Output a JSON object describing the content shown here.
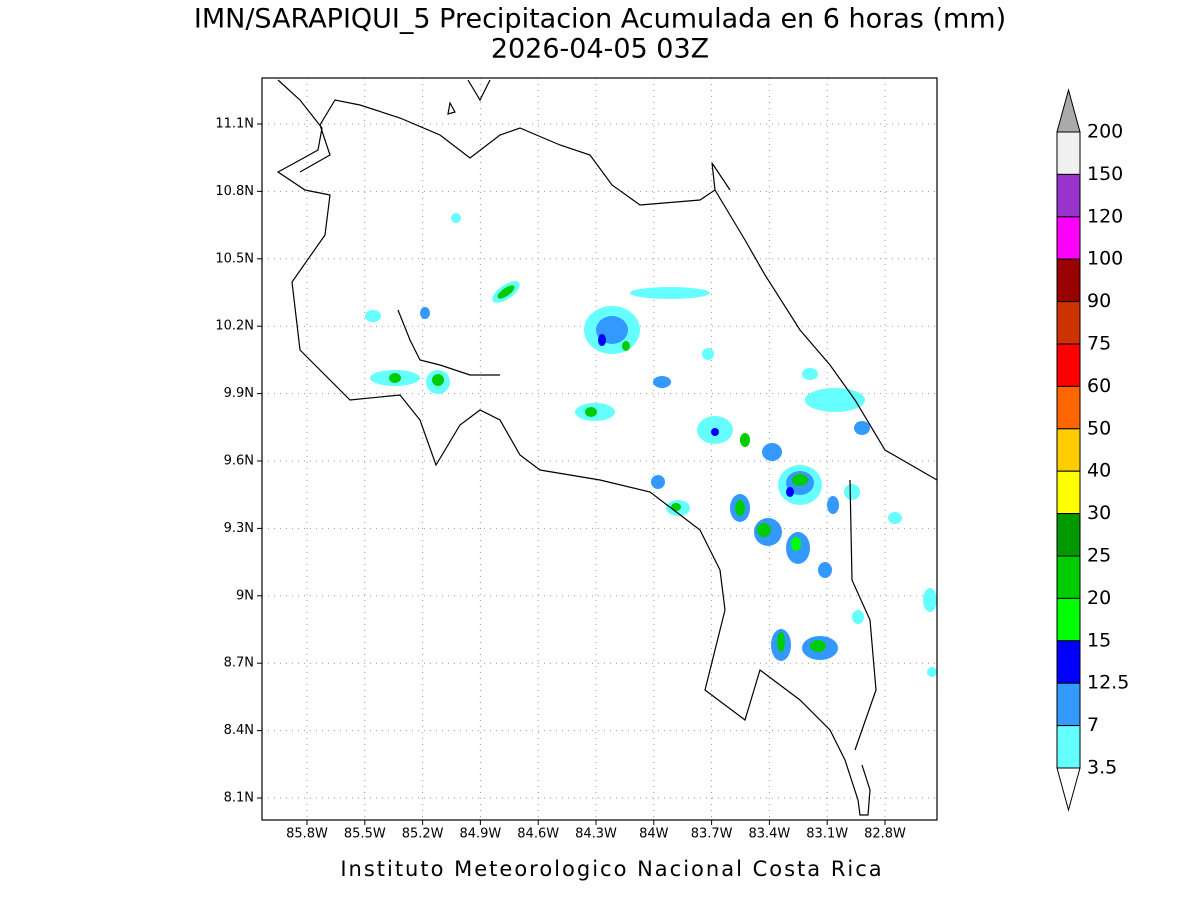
{
  "title": "IMN/SARAPIQUI_5 Precipitacion Acumulada en 6 horas (mm)",
  "subtitle": "2026-04-05 03Z",
  "footer": "Instituto Meteorologico Nacional Costa Rica",
  "lon_ticks": [
    "85.8W",
    "85.5W",
    "85.2W",
    "84.9W",
    "84.6W",
    "84.3W",
    "84W",
    "83.7W",
    "83.4W",
    "83.1W",
    "82.8W"
  ],
  "lat_ticks": [
    "11.1N",
    "10.8N",
    "10.5N",
    "10.2N",
    "9.9N",
    "9.6N",
    "9.3N",
    "9N",
    "8.7N",
    "8.4N",
    "8.1N"
  ],
  "colorbar": {
    "labels": [
      "200",
      "150",
      "120",
      "100",
      "90",
      "75",
      "60",
      "50",
      "40",
      "30",
      "25",
      "20",
      "15",
      "12.5",
      "7",
      "3.5"
    ],
    "colors": [
      "#f0f0f0",
      "#9933cc",
      "#ff00ff",
      "#990000",
      "#cc3300",
      "#ff0000",
      "#ff6600",
      "#ffcc00",
      "#ffff00",
      "#009900",
      "#00cc00",
      "#00ff00",
      "#0000ff",
      "#3399ff",
      "#66ffff"
    ],
    "over_color": "#aaaaaa",
    "under_color": "#ffffff"
  }
}
